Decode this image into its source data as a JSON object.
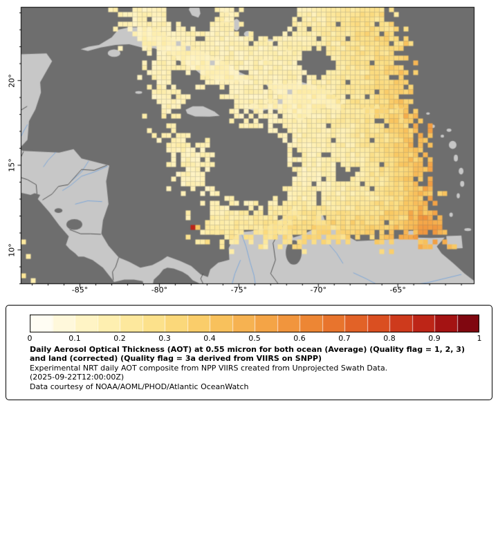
{
  "map": {
    "lon_range": [
      -88.7,
      -60.2
    ],
    "lat_range": [
      8.0,
      24.33
    ],
    "lon_ticks": [
      {
        "value": -85,
        "label": "-85°"
      },
      {
        "value": -80,
        "label": "-80°"
      },
      {
        "value": -75,
        "label": "-75°"
      },
      {
        "value": -70,
        "label": "-70°"
      },
      {
        "value": -65,
        "label": "-65°"
      }
    ],
    "lat_ticks": [
      {
        "value": 20,
        "label": "20°"
      },
      {
        "value": 15,
        "label": "15°"
      },
      {
        "value": 10,
        "label": "10°"
      }
    ],
    "colors": {
      "ocean": "#6e6e6e",
      "land": "#c7c7c7",
      "border": "#454545",
      "river": "#7da7d9",
      "frame": "#000000"
    }
  },
  "colorbar": {
    "min": 0,
    "max": 1,
    "segments": 20,
    "tick_labels": [
      "0",
      "0.1",
      "0.2",
      "0.3",
      "0.4",
      "0.5",
      "0.6",
      "0.7",
      "0.8",
      "0.9",
      "1"
    ],
    "stops": [
      [
        0.0,
        "#ffffff"
      ],
      [
        0.1,
        "#fff6cf"
      ],
      [
        0.2,
        "#fdeca6"
      ],
      [
        0.3,
        "#fbdd82"
      ],
      [
        0.4,
        "#f9c862"
      ],
      [
        0.5,
        "#f5ab4b"
      ],
      [
        0.6,
        "#ef8e38"
      ],
      [
        0.7,
        "#e66c2a"
      ],
      [
        0.8,
        "#d6451e"
      ],
      [
        0.9,
        "#b51a15"
      ],
      [
        0.95,
        "#930d12"
      ],
      [
        1.0,
        "#6c000e"
      ]
    ]
  },
  "caption": {
    "title_bold": "Daily Aerosol Optical Thickness (AOT) at 0.55 micron for both ocean (Average) (Quality flag = 1, 2, 3) and land (corrected) (Quality flag = 3a derived from VIIRS on SNPP)",
    "line_experimental": "Experimental NRT daily AOT composite from NPP VIIRS created from Unprojected Swath Data.",
    "line_timestamp": "(2025-09-22T12:00:00Z)",
    "line_courtesy": "Data courtesy of NOAA/AOML/PHOD/Atlantic OceanWatch"
  },
  "chart_data": {
    "type": "heatmap",
    "variable": "Daily Aerosol Optical Thickness (AOT) at 0.55 micron",
    "source": "NPP VIIRS (SNPP)",
    "timestamp": "2025-09-22T12:00:00Z",
    "colorbar_range": [
      0,
      1
    ],
    "colorbar_tick_labels": [
      "0",
      "0.1",
      "0.2",
      "0.3",
      "0.4",
      "0.5",
      "0.6",
      "0.7",
      "0.8",
      "0.9",
      "1"
    ],
    "x_axis": {
      "label": "longitude",
      "tick_labels": [
        "-85°",
        "-80°",
        "-75°",
        "-70°",
        "-65°"
      ],
      "range": [
        -88.7,
        -60.2
      ]
    },
    "y_axis": {
      "label": "latitude",
      "tick_labels": [
        "20°",
        "15°",
        "10°"
      ],
      "range": [
        8.0,
        24.33
      ]
    },
    "legend_position": "bottom",
    "no_data_color": "#6e6e6e"
  }
}
